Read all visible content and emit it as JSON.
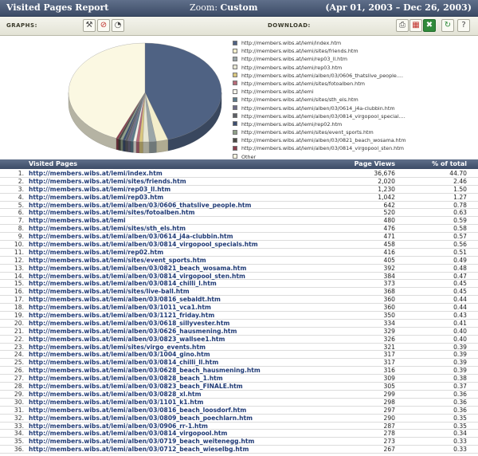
{
  "header": {
    "title": "Visited Pages Report",
    "zoom_label": "Zoom:",
    "zoom_value": "Custom",
    "date_range": "(Apr 01, 2003 – Dec 26, 2003)"
  },
  "toolbar": {
    "graphs_label": "GRAPHS:",
    "download_label": "DOWNLOAD:"
  },
  "colors": {
    "header_bg": "#4a5a78",
    "link": "#1f3a75"
  },
  "table": {
    "columns": [
      "Visited Pages",
      "Page Views",
      "% of total"
    ],
    "rows": [
      {
        "n": "1.",
        "url": "http://members.wibs.at/lemi/index.htm",
        "views": "36,676",
        "pct": "44.70"
      },
      {
        "n": "2.",
        "url": "http://members.wibs.at/lemi/sites/friends.htm",
        "views": "2,020",
        "pct": "2.46"
      },
      {
        "n": "3.",
        "url": "http://members.wibs.at/lemi/rep03_ll.htm",
        "views": "1,230",
        "pct": "1.50"
      },
      {
        "n": "4.",
        "url": "http://members.wibs.at/lemi/rep03.htm",
        "views": "1,042",
        "pct": "1.27"
      },
      {
        "n": "5.",
        "url": "http://members.wibs.at/lemi/alben/03/0606_thatslive_people.htm",
        "views": "642",
        "pct": "0.78"
      },
      {
        "n": "6.",
        "url": "http://members.wibs.at/lemi/sites/fotoalben.htm",
        "views": "520",
        "pct": "0.63"
      },
      {
        "n": "7.",
        "url": "http://members.wibs.at/lemi",
        "views": "480",
        "pct": "0.59"
      },
      {
        "n": "8.",
        "url": "http://members.wibs.at/lemi/sites/sth_els.htm",
        "views": "476",
        "pct": "0.58"
      },
      {
        "n": "9.",
        "url": "http://members.wibs.at/lemi/alben/03/0614_j4a-clubbin.htm",
        "views": "471",
        "pct": "0.57"
      },
      {
        "n": "10.",
        "url": "http://members.wibs.at/lemi/alben/03/0814_virgopool_specials.htm",
        "views": "458",
        "pct": "0.56"
      },
      {
        "n": "11.",
        "url": "http://members.wibs.at/lemi/rep02.htm",
        "views": "416",
        "pct": "0.51"
      },
      {
        "n": "12.",
        "url": "http://members.wibs.at/lemi/sites/event_sports.htm",
        "views": "405",
        "pct": "0.49"
      },
      {
        "n": "13.",
        "url": "http://members.wibs.at/lemi/alben/03/0821_beach_wosama.htm",
        "views": "392",
        "pct": "0.48"
      },
      {
        "n": "14.",
        "url": "http://members.wibs.at/lemi/alben/03/0814_virgopool_sten.htm",
        "views": "384",
        "pct": "0.47"
      },
      {
        "n": "15.",
        "url": "http://members.wibs.at/lemi/alben/03/0814_chilli_l.htm",
        "views": "373",
        "pct": "0.45"
      },
      {
        "n": "16.",
        "url": "http://members.wibs.at/lemi/sites/live-ball.htm",
        "views": "368",
        "pct": "0.45"
      },
      {
        "n": "17.",
        "url": "http://members.wibs.at/lemi/alben/03/0816_sebaldt.htm",
        "views": "360",
        "pct": "0.44"
      },
      {
        "n": "18.",
        "url": "http://members.wibs.at/lemi/alben/03/1011_vca1.htm",
        "views": "360",
        "pct": "0.44"
      },
      {
        "n": "19.",
        "url": "http://members.wibs.at/lemi/alben/03/1121_friday.htm",
        "views": "350",
        "pct": "0.43"
      },
      {
        "n": "20.",
        "url": "http://members.wibs.at/lemi/alben/03/0618_sillyvester.htm",
        "views": "334",
        "pct": "0.41"
      },
      {
        "n": "21.",
        "url": "http://members.wibs.at/lemi/alben/03/0626_hausmening.htm",
        "views": "329",
        "pct": "0.40"
      },
      {
        "n": "22.",
        "url": "http://members.wibs.at/lemi/alben/03/0823_wallsee1.htm",
        "views": "326",
        "pct": "0.40"
      },
      {
        "n": "23.",
        "url": "http://members.wibs.at/lemi/sites/virgo_events.htm",
        "views": "321",
        "pct": "0.39"
      },
      {
        "n": "24.",
        "url": "http://members.wibs.at/lemi/alben/03/1004_gino.htm",
        "views": "317",
        "pct": "0.39"
      },
      {
        "n": "25.",
        "url": "http://members.wibs.at/lemi/alben/03/0814_chilli_ll.htm",
        "views": "317",
        "pct": "0.39"
      },
      {
        "n": "26.",
        "url": "http://members.wibs.at/lemi/alben/03/0628_beach_hausmening.htm",
        "views": "316",
        "pct": "0.39"
      },
      {
        "n": "27.",
        "url": "http://members.wibs.at/lemi/alben/03/0828_beach_1.htm",
        "views": "309",
        "pct": "0.38"
      },
      {
        "n": "28.",
        "url": "http://members.wibs.at/lemi/alben/03/0823_beach_FINALE.htm",
        "views": "305",
        "pct": "0.37"
      },
      {
        "n": "29.",
        "url": "http://members.wibs.at/lemi/alben/03/0828_xl.htm",
        "views": "299",
        "pct": "0.36"
      },
      {
        "n": "30.",
        "url": "http://members.wibs.at/lemi/alben/03/1101_k1.htm",
        "views": "298",
        "pct": "0.36"
      },
      {
        "n": "31.",
        "url": "http://members.wibs.at/lemi/alben/03/0816_beach_loosdorf.htm",
        "views": "297",
        "pct": "0.36"
      },
      {
        "n": "32.",
        "url": "http://members.wibs.at/lemi/alben/03/0809_beach_poechlarn.htm",
        "views": "290",
        "pct": "0.35"
      },
      {
        "n": "33.",
        "url": "http://members.wibs.at/lemi/alben/03/0906_rr-1.htm",
        "views": "287",
        "pct": "0.35"
      },
      {
        "n": "34.",
        "url": "http://members.wibs.at/lemi/alben/03/0814_virgopool.htm",
        "views": "278",
        "pct": "0.34"
      },
      {
        "n": "35.",
        "url": "http://members.wibs.at/lemi/alben/03/0719_beach_weitenegg.htm",
        "views": "273",
        "pct": "0.33"
      },
      {
        "n": "36.",
        "url": "http://members.wibs.at/lemi/alben/03/0712_beach_wieselbg.htm",
        "views": "267",
        "pct": "0.33"
      }
    ]
  },
  "chart_data": {
    "type": "pie",
    "title": "",
    "legend_position": "right",
    "slices": [
      {
        "label": "http://members.wibs.at/lemi/index.htm",
        "value": 44.7,
        "color": "#4f6283"
      },
      {
        "label": "http://members.wibs.at/lemi/sites/friends.htm",
        "value": 2.46,
        "color": "#f3eecb"
      },
      {
        "label": "http://members.wibs.at/lemi/rep03_ll.htm",
        "value": 1.5,
        "color": "#9aa6a8"
      },
      {
        "label": "http://members.wibs.at/lemi/rep03.htm",
        "value": 1.27,
        "color": "#e7e6d3"
      },
      {
        "label": "http://members.wibs.at/lemi/alben/03/0606_thatslive_people....",
        "value": 0.78,
        "color": "#d9c77f"
      },
      {
        "label": "http://members.wibs.at/lemi/sites/fotoalben.htm",
        "value": 0.63,
        "color": "#b66a79"
      },
      {
        "label": "http://members.wibs.at/lemi",
        "value": 0.59,
        "color": "#f5f3ea"
      },
      {
        "label": "http://members.wibs.at/lemi/sites/sth_els.htm",
        "value": 0.58,
        "color": "#5b7a8a"
      },
      {
        "label": "http://members.wibs.at/lemi/alben/03/0614_j4a-clubbin.htm",
        "value": 0.57,
        "color": "#6c6b86"
      },
      {
        "label": "http://members.wibs.at/lemi/alben/03/0814_virgopool_special....",
        "value": 0.56,
        "color": "#5d5f66"
      },
      {
        "label": "http://members.wibs.at/lemi/rep02.htm",
        "value": 0.51,
        "color": "#3e4f70"
      },
      {
        "label": "http://members.wibs.at/lemi/sites/event_sports.htm",
        "value": 0.49,
        "color": "#8fa088"
      },
      {
        "label": "http://members.wibs.at/lemi/alben/03/0821_beach_wosama.htm",
        "value": 0.48,
        "color": "#4b4a44"
      },
      {
        "label": "http://members.wibs.at/lemi/alben/03/0814_virgopool_sten.htm",
        "value": 0.47,
        "color": "#8a3e4c"
      },
      {
        "label": "Other",
        "value": 43.41,
        "color": "#fbf8e2"
      }
    ]
  }
}
